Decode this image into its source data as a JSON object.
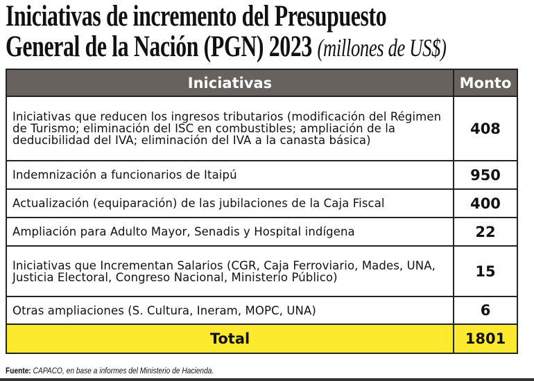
{
  "title": {
    "line1": "Iniciativas de incremento del Presupuesto",
    "line2": "General de la Nación (PGN) 2023",
    "unit": "(millones de US$)"
  },
  "table": {
    "headers": [
      "Iniciativas",
      "Monto"
    ],
    "rows": [
      {
        "label": "Iniciativas que reducen los ingresos tributarios (modificación del Régimen de Turismo; eliminación del ISC en combustibles; ampliación de la deducibilidad del IVA; eliminación del IVA a la canasta básica)",
        "value": "408"
      },
      {
        "label": "Indemnización a funcionarios de Itaipú",
        "value": "950"
      },
      {
        "label": "Actualización (equiparación) de las jubilaciones de la Caja Fiscal",
        "value": "400"
      },
      {
        "label": "Ampliación para Adulto Mayor, Senadis y Hospital indígena",
        "value": "22"
      },
      {
        "label": "Iniciativas que Incrementan Salarios (CGR, Caja Ferroviario, Mades, UNA, Justicia Electoral, Congreso Nacional, Ministerio Público)",
        "value": "15"
      },
      {
        "label": "Otras ampliaciones (S. Cultura, Ineram, MOPC, UNA)",
        "value": "6"
      }
    ],
    "total": {
      "label": "Total",
      "value": "1801"
    }
  },
  "source": {
    "label": "Fuente:",
    "text": " CAPACO, en base a informes del Ministerio de Hacienda."
  },
  "colors": {
    "header_bg": "#67625e",
    "total_bg": "#fdea2f"
  }
}
